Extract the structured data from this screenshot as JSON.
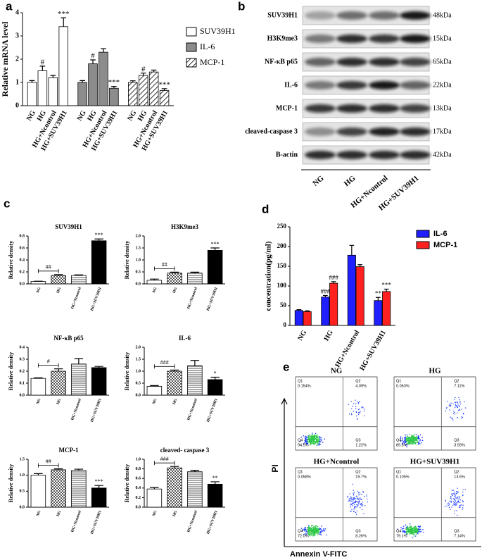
{
  "panel_labels": [
    "a",
    "b",
    "c",
    "d",
    "e"
  ],
  "chart_data": [
    {
      "type": "grouped-bar",
      "ylabel": "Relative mRNA level",
      "categories": [
        "NG",
        "HG",
        "HG+Ncontrol",
        "HG+SUV39H1"
      ],
      "ylim": [
        0,
        4
      ],
      "yticks": [
        0,
        1,
        2,
        3,
        4
      ],
      "series": [
        {
          "name": "SUV39H1",
          "color": "#ffffff",
          "values": [
            1.0,
            1.5,
            1.2,
            3.4
          ],
          "errors": [
            0.08,
            0.2,
            0.1,
            0.38
          ],
          "annotations": [
            null,
            "#",
            null,
            "***"
          ]
        },
        {
          "name": "IL-6",
          "color": "#8c8c8c",
          "values": [
            1.0,
            1.8,
            2.3,
            0.75
          ],
          "errors": [
            0.08,
            0.17,
            0.15,
            0.08
          ],
          "annotations": [
            null,
            "#",
            null,
            "***"
          ]
        },
        {
          "name": "MCP-1",
          "color": "#ffffff",
          "pattern": "diagonal",
          "values": [
            1.0,
            1.3,
            1.45,
            0.65
          ],
          "errors": [
            0.07,
            0.1,
            0.08,
            0.08
          ],
          "annotations": [
            null,
            "#",
            null,
            "***"
          ]
        }
      ]
    },
    {
      "type": "bar",
      "title": "SUV39H1",
      "ylabel": "Relative density",
      "categories": [
        "NG",
        "HG",
        "HG+Ncontrol",
        "HG+SUV39H1"
      ],
      "values": [
        0.04,
        0.14,
        0.14,
        0.72
      ],
      "errors": [
        0.005,
        0.015,
        0.01,
        0.03
      ],
      "annotations": [
        null,
        null,
        null,
        "***"
      ],
      "bracket_label": "##",
      "colors": [
        "#ffffff",
        "#ffffff",
        "#ffffff",
        "#000000"
      ],
      "patterns": [
        null,
        "checker",
        "horizontal",
        null
      ],
      "ylim": [
        0,
        0.8
      ],
      "yticks": [
        {
          "value": 0,
          "label": "0.0"
        },
        0.2,
        0.4,
        0.6,
        0.8
      ]
    },
    {
      "type": "bar",
      "title": "H3K9me3",
      "ylabel": "Relative density",
      "categories": [
        "NG",
        "HG",
        "HG+Ncontrol",
        "HG+SUV39H1"
      ],
      "values": [
        0.15,
        0.45,
        0.45,
        1.4
      ],
      "errors": [
        0.05,
        0.04,
        0.04,
        0.1
      ],
      "annotations": [
        null,
        null,
        null,
        "***"
      ],
      "bracket_label": "##",
      "colors": [
        "#ffffff",
        "#ffffff",
        "#ffffff",
        "#000000"
      ],
      "patterns": [
        null,
        "checker",
        "horizontal",
        null
      ],
      "ylim": [
        0,
        2
      ],
      "yticks": [
        {
          "value": 0,
          "label": "0.0"
        },
        0.5,
        {
          "value": 1,
          "label": "1.0"
        },
        1.5,
        {
          "value": 2,
          "label": "2.0"
        }
      ]
    },
    {
      "type": "bar",
      "title": "NF-κB p65",
      "ylabel": "Relative density",
      "categories": [
        "NG",
        "HG",
        "HG+Ncontrol",
        "HG+SUV39H1"
      ],
      "values": [
        0.14,
        0.2,
        0.26,
        0.23
      ],
      "errors": [
        0.005,
        0.02,
        0.045,
        0.01
      ],
      "annotations": [
        null,
        null,
        null,
        null
      ],
      "bracket_label": "#",
      "colors": [
        "#ffffff",
        "#ffffff",
        "#ffffff",
        "#000000"
      ],
      "patterns": [
        null,
        "checker",
        "horizontal",
        null
      ],
      "ylim": [
        0,
        0.4
      ],
      "yticks": [
        {
          "value": 0,
          "label": "0.0"
        },
        0.1,
        0.2,
        0.3,
        0.4
      ]
    },
    {
      "type": "bar",
      "title": "IL-6",
      "ylabel": "Relative density",
      "categories": [
        "NG",
        "HG",
        "HG+Ncontrol",
        "HG+SUV39H1"
      ],
      "values": [
        0.37,
        1.0,
        1.23,
        0.65
      ],
      "errors": [
        0.03,
        0.05,
        0.22,
        0.1
      ],
      "annotations": [
        null,
        null,
        null,
        "*"
      ],
      "bracket_label": "###",
      "colors": [
        "#ffffff",
        "#ffffff",
        "#ffffff",
        "#000000"
      ],
      "patterns": [
        null,
        "checker",
        "horizontal",
        null
      ],
      "ylim": [
        0,
        2
      ],
      "yticks": [
        {
          "value": 0,
          "label": "0.0"
        },
        0.5,
        {
          "value": 1,
          "label": "1.0"
        },
        1.5,
        {
          "value": 2,
          "label": "2.0"
        }
      ]
    },
    {
      "type": "bar",
      "title": "MCP-1",
      "ylabel": "Relative density",
      "categories": [
        "NG",
        "HG",
        "HG+Ncontrol",
        "HG+SUV39H1"
      ],
      "values": [
        1.0,
        1.17,
        1.15,
        0.6
      ],
      "errors": [
        0.05,
        0.03,
        0.04,
        0.08
      ],
      "annotations": [
        null,
        null,
        null,
        "***"
      ],
      "bracket_label": "##",
      "colors": [
        "#ffffff",
        "#ffffff",
        "#ffffff",
        "#000000"
      ],
      "patterns": [
        null,
        "checker",
        "horizontal",
        null
      ],
      "ylim": [
        0,
        1.5
      ],
      "yticks": [
        {
          "value": 0,
          "label": "0.0"
        },
        0.5,
        {
          "value": 1,
          "label": "1.0"
        },
        1.5
      ]
    },
    {
      "type": "bar",
      "title": "cleaved- caspase 3",
      "ylabel": "Relative density",
      "categories": [
        "NG",
        "HG",
        "HG+Ncontrol",
        "HG+SUV39H1"
      ],
      "values": [
        0.38,
        0.82,
        0.74,
        0.48
      ],
      "errors": [
        0.03,
        0.03,
        0.03,
        0.05
      ],
      "annotations": [
        null,
        null,
        null,
        "**"
      ],
      "bracket_label": "###",
      "colors": [
        "#ffffff",
        "#ffffff",
        "#ffffff",
        "#000000"
      ],
      "patterns": [
        null,
        "checker",
        "horizontal",
        null
      ],
      "ylim": [
        0,
        1
      ],
      "yticks": [
        {
          "value": 0,
          "label": "0.0"
        },
        0.2,
        0.4,
        0.6,
        0.8,
        {
          "value": 1,
          "label": "1.0"
        }
      ]
    },
    {
      "type": "grouped-bar-by-category",
      "ylabel": "concentration(pg/ml)",
      "categories": [
        "NG",
        "HG",
        "HG+Ncontrol",
        "HG+SUV39H1"
      ],
      "ylim": [
        0,
        250
      ],
      "yticks": [
        0,
        50,
        100,
        150,
        200,
        250
      ],
      "legend": "upper right",
      "series": [
        {
          "name": "IL-6",
          "color": "#1f1fff",
          "values": [
            38,
            72,
            178,
            63
          ],
          "errors": [
            2,
            4,
            25,
            8
          ],
          "annotations": [
            null,
            "###",
            null,
            "**"
          ]
        },
        {
          "name": "MCP-1",
          "color": "#ff2020",
          "values": [
            35,
            107,
            149,
            86
          ],
          "errors": [
            2,
            4,
            5,
            6
          ],
          "annotations": [
            null,
            "###",
            null,
            "***"
          ]
        }
      ]
    }
  ],
  "blot": {
    "rows": [
      {
        "label": "SUV39H1",
        "size": "48kDa"
      },
      {
        "label": "H3K9me3",
        "size": "15kDa"
      },
      {
        "label": "NF-κB p65",
        "size": "65kDa"
      },
      {
        "label": "IL-6",
        "size": "22kDa"
      },
      {
        "label": "MCP-1",
        "size": "13kDa"
      },
      {
        "label": "cleaved-caspase 3",
        "size": "17kDa"
      },
      {
        "label": "B-actin",
        "size": "42kDa"
      }
    ],
    "lanes": [
      "NG",
      "HG",
      "HG+Ncontrol",
      "HG+SUV39H1"
    ]
  },
  "flow": {
    "xlabel": "Annexin V-FITC",
    "ylabel": "PI",
    "plots": [
      {
        "title": "NG",
        "quadrants": [
          {
            "name": "Q1",
            "value": "0.154%"
          },
          {
            "name": "Q2",
            "value": "4.09%"
          },
          {
            "name": "Q3",
            "value": "1.22%"
          },
          {
            "name": "Q4",
            "value": "94.5%"
          }
        ]
      },
      {
        "title": "HG",
        "quadrants": [
          {
            "name": "Q1",
            "value": "0.063%"
          },
          {
            "name": "Q2",
            "value": "7.11%"
          },
          {
            "name": "Q3",
            "value": "3.59%"
          },
          {
            "name": "Q4",
            "value": "89.3%"
          }
        ]
      },
      {
        "title": "HG+Ncontrol",
        "quadrants": [
          {
            "name": "Q1",
            "value": "0.058%"
          },
          {
            "name": "Q2",
            "value": "19.7%"
          },
          {
            "name": "Q3",
            "value": "8.26%"
          },
          {
            "name": "Q4",
            "value": "72.0%"
          }
        ]
      },
      {
        "title": "HG+SUV39H1",
        "quadrants": [
          {
            "name": "Q1",
            "value": "0.105%"
          },
          {
            "name": "Q2",
            "value": "13.6%"
          },
          {
            "name": "Q3",
            "value": "7.14%"
          },
          {
            "name": "Q4",
            "value": "79.1%"
          }
        ]
      }
    ]
  }
}
